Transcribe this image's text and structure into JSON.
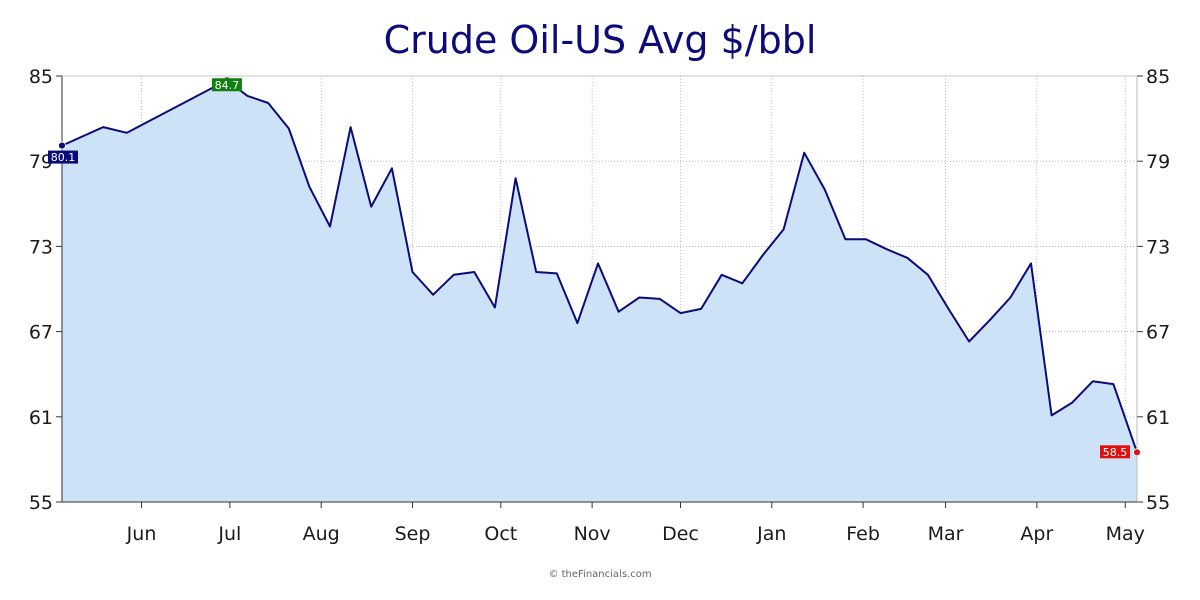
{
  "credit": "© theFinancials.com",
  "chart_data": {
    "type": "area",
    "title": "Crude Oil-US Avg $/bbl",
    "xlabel": "",
    "ylabel": "",
    "ylim": [
      55,
      85
    ],
    "yticks": [
      "55",
      "61",
      "67",
      "73",
      "79",
      "85"
    ],
    "xlim": [
      "2018-05-05",
      "2019-05-05"
    ],
    "xticks": [
      {
        "label": "Jun",
        "date": "2018-06-01"
      },
      {
        "label": "Jul",
        "date": "2018-07-01"
      },
      {
        "label": "Aug",
        "date": "2018-08-01"
      },
      {
        "label": "Sep",
        "date": "2018-09-01"
      },
      {
        "label": "Oct",
        "date": "2018-10-01"
      },
      {
        "label": "Nov",
        "date": "2018-11-01"
      },
      {
        "label": "Dec",
        "date": "2018-12-01"
      },
      {
        "label": "Jan",
        "date": "2019-01-01"
      },
      {
        "label": "Feb",
        "date": "2019-02-01"
      },
      {
        "label": "Mar",
        "date": "2019-03-01"
      },
      {
        "label": "Apr",
        "date": "2019-04-01"
      },
      {
        "label": "May",
        "date": "2019-05-01"
      }
    ],
    "grid": true,
    "colors": {
      "line": "#0b0b7a",
      "fill": "#cde1f7",
      "start": "#0b0b7a",
      "max": "#108010",
      "last": "#dd1111",
      "grid": "#999999"
    },
    "series": [
      {
        "points": [
          [
            "2018-05-05",
            80.1
          ],
          [
            "2018-05-19",
            81.4
          ],
          [
            "2018-05-27",
            81.0
          ],
          [
            "2018-06-30",
            84.7
          ],
          [
            "2018-07-07",
            83.6
          ],
          [
            "2018-07-14",
            83.1
          ],
          [
            "2018-07-21",
            81.3
          ],
          [
            "2018-07-28",
            77.2
          ],
          [
            "2018-08-04",
            74.4
          ],
          [
            "2018-08-11",
            81.4
          ],
          [
            "2018-08-18",
            75.8
          ],
          [
            "2018-08-25",
            78.5
          ],
          [
            "2018-09-01",
            71.2
          ],
          [
            "2018-09-08",
            69.6
          ],
          [
            "2018-09-15",
            71.0
          ],
          [
            "2018-09-22",
            71.2
          ],
          [
            "2018-09-29",
            68.7
          ],
          [
            "2018-10-06",
            77.8
          ],
          [
            "2018-10-13",
            71.2
          ],
          [
            "2018-10-20",
            71.1
          ],
          [
            "2018-10-27",
            67.6
          ],
          [
            "2018-11-03",
            71.8
          ],
          [
            "2018-11-10",
            68.4
          ],
          [
            "2018-11-17",
            69.4
          ],
          [
            "2018-11-24",
            69.3
          ],
          [
            "2018-12-01",
            68.3
          ],
          [
            "2018-12-08",
            68.6
          ],
          [
            "2018-12-15",
            71.0
          ],
          [
            "2018-12-22",
            70.4
          ],
          [
            "2018-12-29",
            72.4
          ],
          [
            "2019-01-05",
            74.2
          ],
          [
            "2019-01-12",
            79.6
          ],
          [
            "2019-01-19",
            77.0
          ],
          [
            "2019-01-26",
            73.5
          ],
          [
            "2019-02-02",
            73.5
          ],
          [
            "2019-02-09",
            72.8
          ],
          [
            "2019-02-16",
            72.2
          ],
          [
            "2019-02-23",
            71.0
          ],
          [
            "2019-03-02",
            68.6
          ],
          [
            "2019-03-09",
            66.3
          ],
          [
            "2019-03-16",
            67.8
          ],
          [
            "2019-03-23",
            69.4
          ],
          [
            "2019-03-30",
            71.8
          ],
          [
            "2019-04-06",
            61.1
          ],
          [
            "2019-04-13",
            62.0
          ],
          [
            "2019-04-20",
            63.5
          ],
          [
            "2019-04-27",
            63.3
          ],
          [
            "2019-05-05",
            58.5
          ]
        ]
      }
    ],
    "labels": {
      "start": {
        "date": "2018-05-05",
        "value": 80.1,
        "text": "80.1"
      },
      "max": {
        "date": "2018-06-30",
        "value": 84.7,
        "text": "84.7"
      },
      "last": {
        "date": "2019-05-05",
        "value": 58.5,
        "text": "58.5"
      }
    }
  }
}
